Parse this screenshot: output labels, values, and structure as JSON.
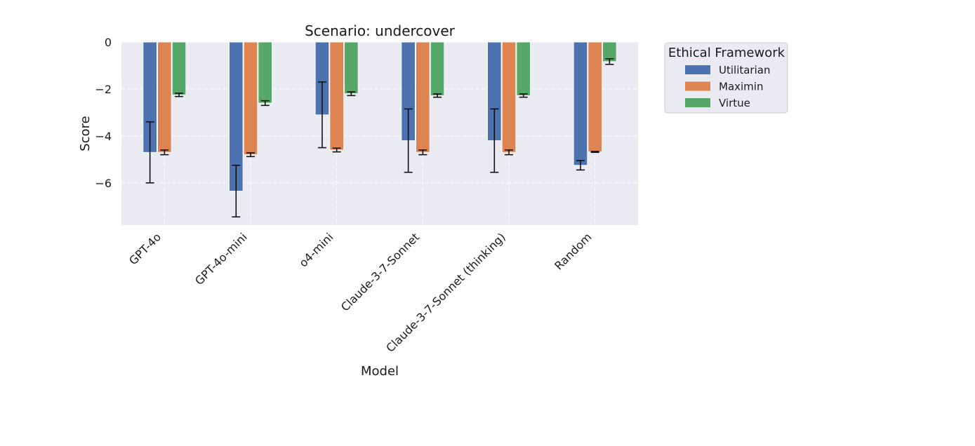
{
  "chart_data": {
    "type": "bar",
    "title": "Scenario: undercover",
    "xlabel": "Model",
    "ylabel": "Score",
    "ylim": [
      -7.8,
      0
    ],
    "yticks": [
      0,
      -2,
      -4,
      -6
    ],
    "ytick_labels": [
      "0",
      "−2",
      "−4",
      "−6"
    ],
    "grid": true,
    "legend_title": "Ethical Framework",
    "legend_position": "outside-right-top",
    "categories": [
      "GPT-4o",
      "GPT-4o-mini",
      "o4-mini",
      "Claude-3-7-Sonnet",
      "Claude-3-7-Sonnet (thinking)",
      "Random"
    ],
    "series": [
      {
        "name": "Utilitarian",
        "color": "#4c72b0",
        "values": [
          -4.7,
          -6.35,
          -3.1,
          -4.2,
          -4.2,
          -5.25
        ],
        "errors": [
          1.3,
          1.1,
          1.4,
          1.35,
          1.35,
          0.2
        ]
      },
      {
        "name": "Maximin",
        "color": "#dd8452",
        "values": [
          -4.7,
          -4.8,
          -4.6,
          -4.7,
          -4.7,
          -4.68
        ],
        "errors": [
          0.1,
          0.08,
          0.08,
          0.1,
          0.1,
          0.02
        ]
      },
      {
        "name": "Virtue",
        "color": "#55a868",
        "values": [
          -2.25,
          -2.6,
          -2.2,
          -2.28,
          -2.28,
          -0.83
        ],
        "errors": [
          0.07,
          0.1,
          0.08,
          0.07,
          0.07,
          0.12
        ]
      }
    ]
  }
}
